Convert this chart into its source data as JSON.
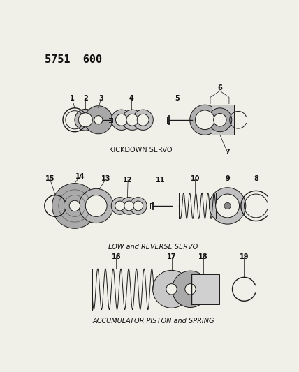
{
  "title": "5751  600",
  "background_color": "#f0efe8",
  "section1_label": "KICKDOWN SERVO",
  "section2_label": "LOW and REVERSE SERVO",
  "section3_label": "ACCUMULATOR PISTON and SPRING",
  "font_size_title": 11,
  "font_size_labels": 7,
  "font_size_numbers": 7,
  "line_color": "#1a1a1a",
  "text_color": "#111111",
  "fig_w": 4.28,
  "fig_h": 5.33,
  "dpi": 100
}
